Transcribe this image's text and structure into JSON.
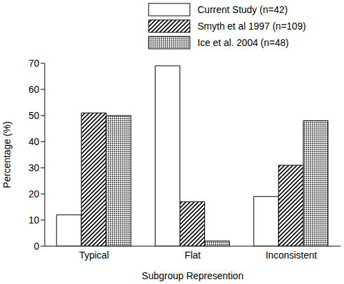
{
  "chart_data": {
    "type": "bar",
    "categories": [
      "Typical",
      "Flat",
      "Inconsistent"
    ],
    "series": [
      {
        "name": "Current Study (n=42)",
        "color": "#ffffff",
        "values": [
          12,
          69,
          19
        ]
      },
      {
        "name": "Smyth et al 1997 (n=109)",
        "color": "#000000",
        "values": [
          51,
          17,
          31
        ]
      },
      {
        "name": "Ice et al. 2004 (n=48)",
        "color": "#000000",
        "values": [
          50,
          2,
          48
        ]
      }
    ],
    "x_label": "Subgroup Represention",
    "y_label": "Percentage (%)",
    "ylim": [
      0,
      70
    ],
    "yticks": [
      0,
      10,
      20,
      30,
      40,
      50,
      60,
      70
    ],
    "grid": false,
    "legend": "top"
  }
}
